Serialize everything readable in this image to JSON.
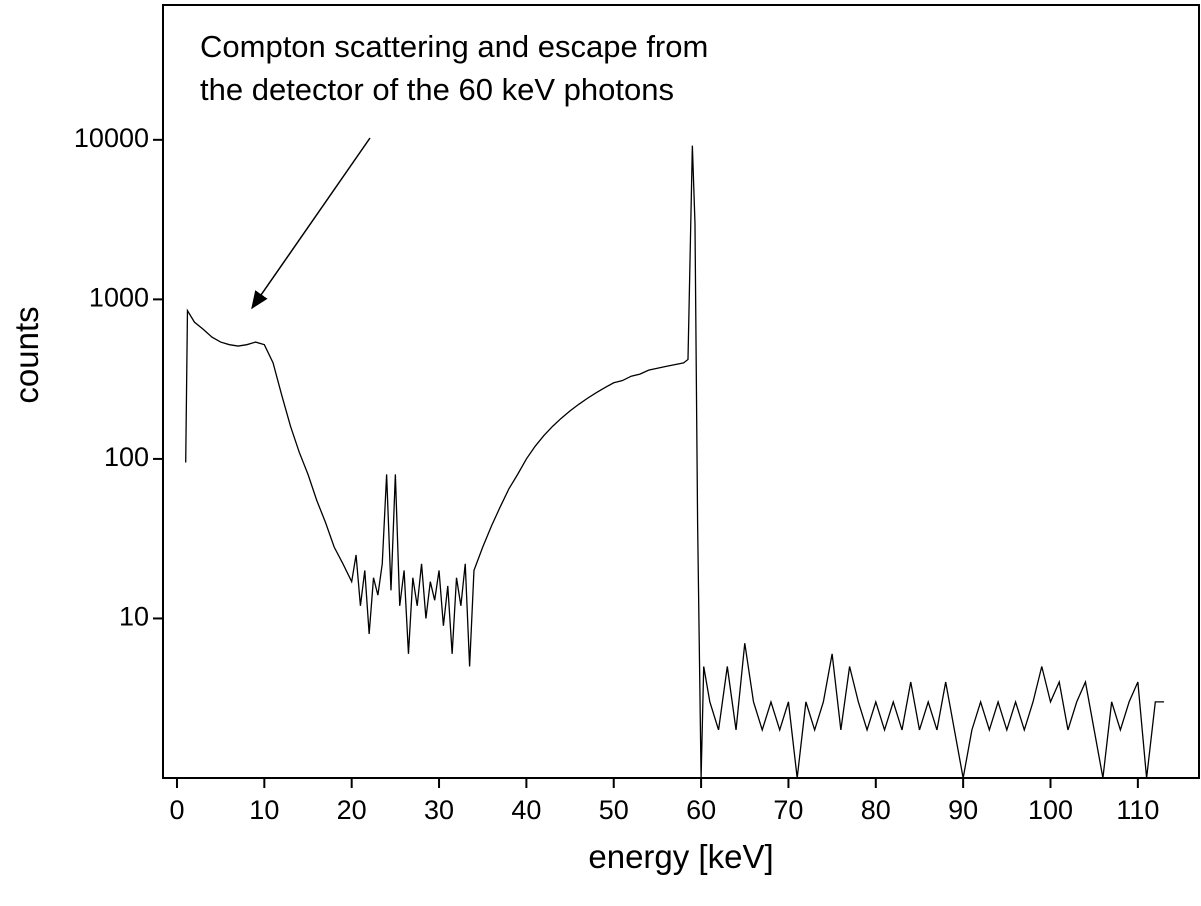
{
  "chart_data": {
    "type": "line",
    "annotation": [
      "Compton scattering and escape from",
      "the detector of the 60 keV photons"
    ],
    "x_label": "energy [keV]",
    "y_label": "counts",
    "log_y": true,
    "grid": false,
    "color": "#000000",
    "xlim": [
      -1.6,
      117
    ],
    "ylim": [
      1,
      70000
    ],
    "xticks": [
      0,
      10,
      20,
      30,
      40,
      50,
      60,
      70,
      80,
      90,
      100,
      110
    ],
    "yticks": [
      10,
      100,
      1000,
      10000
    ],
    "x": [
      1,
      1.2,
      2,
      3,
      4,
      5,
      6,
      7,
      8,
      9,
      10,
      11,
      12,
      13,
      14,
      15,
      16,
      17,
      18,
      19,
      20,
      20.5,
      21,
      21.5,
      22,
      22.5,
      23,
      23.5,
      24,
      24.5,
      25,
      25.5,
      26,
      26.5,
      27,
      27.5,
      28,
      28.5,
      29,
      29.5,
      30,
      30.5,
      31,
      31.5,
      32,
      32.5,
      33,
      33.5,
      34,
      35,
      36,
      37,
      38,
      39,
      40,
      41,
      42,
      43,
      44,
      45,
      46,
      47,
      48,
      49,
      50,
      51,
      52,
      53,
      54,
      55,
      56,
      57,
      58,
      58.5,
      59,
      59.3,
      59.6,
      60,
      60.3,
      61,
      62,
      63,
      64,
      65,
      66,
      67,
      68,
      69,
      70,
      71,
      72,
      73,
      74,
      75,
      76,
      77,
      78,
      79,
      80,
      81,
      82,
      83,
      84,
      85,
      86,
      87,
      88,
      89,
      90,
      91,
      92,
      93,
      94,
      95,
      96,
      97,
      98,
      99,
      100,
      101,
      102,
      103,
      104,
      105,
      106,
      107,
      108,
      109,
      110,
      111,
      112,
      113
    ],
    "values": [
      95,
      850,
      720,
      650,
      580,
      540,
      520,
      510,
      520,
      540,
      520,
      400,
      250,
      160,
      110,
      80,
      55,
      40,
      28,
      22,
      17,
      25,
      12,
      20,
      8,
      18,
      14,
      22,
      80,
      15,
      80,
      12,
      20,
      6,
      18,
      12,
      22,
      10,
      17,
      13,
      20,
      9,
      16,
      6,
      18,
      12,
      22,
      5,
      20,
      28,
      38,
      50,
      65,
      80,
      100,
      120,
      140,
      160,
      180,
      200,
      220,
      240,
      260,
      280,
      300,
      310,
      330,
      340,
      360,
      370,
      380,
      390,
      400,
      420,
      9200,
      3000,
      40,
      1,
      5,
      3,
      2,
      5,
      2,
      7,
      3,
      2,
      3,
      2,
      3,
      1,
      3,
      2,
      3,
      6,
      2,
      5,
      3,
      2,
      3,
      2,
      3,
      2,
      4,
      2,
      3,
      2,
      4,
      2,
      1,
      2,
      3,
      2,
      3,
      2,
      3,
      2,
      3,
      5,
      3,
      4,
      2,
      3,
      4,
      2,
      1,
      3,
      2,
      3,
      4,
      1,
      3,
      3
    ]
  }
}
